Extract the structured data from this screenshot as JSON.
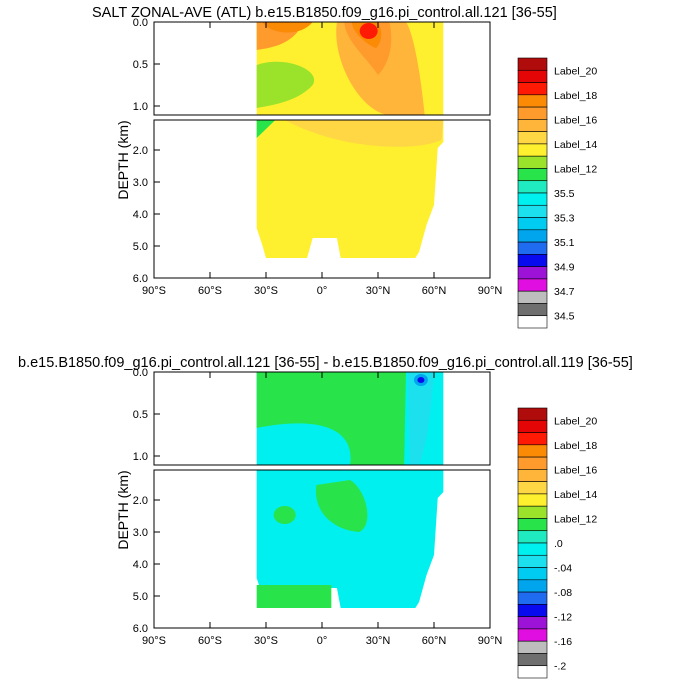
{
  "colors": {
    "labelbar": [
      "#ffffff",
      "#6f6f6f",
      "#bdbdbd",
      "#e10ee1",
      "#9c12d6",
      "#0a0aef",
      "#1f6cf0",
      "#00a5ee",
      "#00cbf0",
      "#1de0ee",
      "#00f0ef",
      "#20eac0",
      "#29e34a",
      "#9be32a",
      "#fff02f",
      "#ffd744",
      "#ffb53a",
      "#ff9a2d",
      "#fb8a05",
      "#ff1a05",
      "#e40606",
      "#b00c0c"
    ],
    "top_fill": [
      "#fff02f",
      "#ffd744",
      "#ffb53a",
      "#ff9a2d",
      "#fb8a05",
      "#ff1a05",
      "#9be32a",
      "#29e34a"
    ],
    "bottom_fill": [
      "#29e34a",
      "#20eac0",
      "#00f0ef",
      "#1de0ee",
      "#00a5ee",
      "#0a0aef"
    ]
  },
  "chart_data": [
    {
      "type": "contour",
      "title": "SALT ZONAL-AVE (ATL) b.e15.B1850.f09_g16.pi_control.all.121 [36-55]",
      "ylabel": "DEPTH (km)",
      "xlabel": "",
      "x_ticks": [
        "90°S",
        "60°S",
        "30°S",
        "0°",
        "30°N",
        "60°N",
        "90°N"
      ],
      "y_ticks_upper": [
        "0.0",
        "0.5",
        "1.0"
      ],
      "y_ticks_lower": [
        "2.0",
        "3.0",
        "4.0",
        "5.0",
        "6.0"
      ],
      "xlim": [
        -90,
        90
      ],
      "ylim_upper_km": [
        0,
        1.1
      ],
      "ylim_lower_km": [
        1.1,
        6
      ],
      "colorbar_labels": [
        "Label_20",
        "Label_18",
        "Label_16",
        "Label_14",
        "Label_12",
        "35.5",
        "35.3",
        "35.1",
        "34.9",
        "34.7",
        "34.5"
      ]
    },
    {
      "type": "contour",
      "title": "b.e15.B1850.f09_g16.pi_control.all.121 [36-55] - b.e15.B1850.f09_g16.pi_control.all.119 [36-55]",
      "ylabel": "DEPTH (km)",
      "xlabel": "",
      "x_ticks": [
        "90°S",
        "60°S",
        "30°S",
        "0°",
        "30°N",
        "60°N",
        "90°N"
      ],
      "y_ticks_upper": [
        "0.0",
        "0.5",
        "1.0"
      ],
      "y_ticks_lower": [
        "2.0",
        "3.0",
        "4.0",
        "5.0",
        "6.0"
      ],
      "xlim": [
        -90,
        90
      ],
      "ylim_upper_km": [
        0,
        1.1
      ],
      "ylim_lower_km": [
        1.1,
        6
      ],
      "colorbar_labels": [
        "Label_20",
        "Label_18",
        "Label_16",
        "Label_14",
        "Label_12",
        ".0",
        "-.04",
        "-.08",
        "-.12",
        "-.16",
        "-.2"
      ]
    }
  ]
}
